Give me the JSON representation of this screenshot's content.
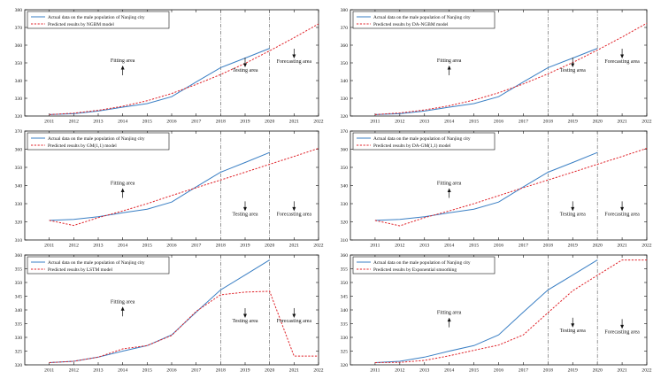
{
  "colors": {
    "actual": "#3a7fc4",
    "predicted": "#e0242b",
    "axis": "#111111",
    "vline": "#555555"
  },
  "chart_data": [
    {
      "type": "line",
      "years": [
        2011,
        2012,
        2013,
        2014,
        2015,
        2016,
        2017,
        2018,
        2019,
        2020,
        2021,
        2022
      ],
      "xlim": [
        2010,
        2022
      ],
      "ylim": [
        320,
        380
      ],
      "yticks": [
        320,
        330,
        340,
        350,
        360,
        370,
        380
      ],
      "vlines": [
        2018,
        2020
      ],
      "legend": [
        "Actual data on the male population of Nanjing city",
        "Predicted results by NGBM model"
      ],
      "series": [
        {
          "name": "Actual data on the male population of Nanjing city",
          "x": [
            2011,
            2012,
            2013,
            2014,
            2015,
            2016,
            2017,
            2018,
            2019,
            2020
          ],
          "values": [
            320.8,
            321.3,
            322.8,
            325.0,
            327.0,
            330.9,
            339.2,
            347.3,
            352.7,
            358.2
          ]
        },
        {
          "name": "Predicted results by NGBM model",
          "x": [
            2011,
            2012,
            2013,
            2014,
            2015,
            2016,
            2017,
            2018,
            2019,
            2020,
            2021,
            2022
          ],
          "values": [
            320.8,
            321.6,
            323.2,
            325.5,
            328.6,
            332.7,
            337.8,
            343.4,
            349.7,
            356.8,
            364.2,
            372.0
          ]
        }
      ],
      "annotations": [
        {
          "text": "Fitting area",
          "x": 2014.0,
          "y": 350.5,
          "arrow": "up"
        },
        {
          "text": "Testing area",
          "x": 2019.0,
          "y": 345.0,
          "arrow": "down"
        },
        {
          "text": "Forecasting area",
          "x": 2021.0,
          "y": 350.0,
          "arrow": "down"
        }
      ]
    },
    {
      "type": "line",
      "years": [
        2011,
        2012,
        2013,
        2014,
        2015,
        2016,
        2017,
        2018,
        2019,
        2020,
        2021,
        2022
      ],
      "xlim": [
        2010,
        2022
      ],
      "ylim": [
        320,
        380
      ],
      "yticks": [
        320,
        330,
        340,
        350,
        360,
        370,
        380
      ],
      "vlines": [
        2018,
        2020
      ],
      "legend": [
        "Actual data on the male population of Nanjing city",
        "Predicted results by DA-NGBM model"
      ],
      "series": [
        {
          "name": "Actual data on the male population of Nanjing city",
          "x": [
            2011,
            2012,
            2013,
            2014,
            2015,
            2016,
            2017,
            2018,
            2019,
            2020
          ],
          "values": [
            320.8,
            321.3,
            322.8,
            325.0,
            327.0,
            330.9,
            339.2,
            347.3,
            352.7,
            358.2
          ]
        },
        {
          "name": "Predicted results by DA-NGBM model",
          "x": [
            2011,
            2012,
            2013,
            2014,
            2015,
            2016,
            2017,
            2018,
            2019,
            2020,
            2021,
            2022
          ],
          "values": [
            320.8,
            321.7,
            323.4,
            325.8,
            329.0,
            333.1,
            338.1,
            343.8,
            350.2,
            357.2,
            364.6,
            372.4
          ]
        }
      ],
      "annotations": [
        {
          "text": "Fitting area",
          "x": 2014.0,
          "y": 350.5,
          "arrow": "up"
        },
        {
          "text": "Testing area",
          "x": 2019.0,
          "y": 345.0,
          "arrow": "down"
        },
        {
          "text": "Forecasting area",
          "x": 2021.0,
          "y": 350.0,
          "arrow": "down"
        }
      ]
    },
    {
      "type": "line",
      "years": [
        2011,
        2012,
        2013,
        2014,
        2015,
        2016,
        2017,
        2018,
        2019,
        2020,
        2021,
        2022
      ],
      "xlim": [
        2010,
        2022
      ],
      "ylim": [
        310,
        370
      ],
      "yticks": [
        310,
        320,
        330,
        340,
        350,
        360,
        370
      ],
      "vlines": [
        2018,
        2020
      ],
      "legend": [
        "Actual data on the male population of Nanjing city",
        "Predicted results by GM(1,1) model"
      ],
      "series": [
        {
          "name": "Actual data on the male population of Nanjing city",
          "x": [
            2011,
            2012,
            2013,
            2014,
            2015,
            2016,
            2017,
            2018,
            2019,
            2020
          ],
          "values": [
            320.8,
            321.3,
            322.8,
            325.0,
            327.0,
            330.9,
            339.2,
            347.3,
            352.7,
            358.2
          ]
        },
        {
          "name": "Predicted results by GM(1,1) model",
          "x": [
            2011,
            2012,
            2013,
            2014,
            2015,
            2016,
            2017,
            2018,
            2019,
            2020,
            2021,
            2022
          ],
          "values": [
            320.8,
            318.0,
            322.3,
            326.0,
            330.0,
            334.5,
            338.8,
            343.0,
            347.3,
            351.7,
            356.0,
            360.5
          ]
        }
      ],
      "annotations": [
        {
          "text": "Fitting area",
          "x": 2014.0,
          "y": 340.5,
          "arrow": "up"
        },
        {
          "text": "Testing area",
          "x": 2019.0,
          "y": 323.5,
          "arrow": "down"
        },
        {
          "text": "Forecasting area",
          "x": 2021.0,
          "y": 323.5,
          "arrow": "down"
        }
      ]
    },
    {
      "type": "line",
      "years": [
        2011,
        2012,
        2013,
        2014,
        2015,
        2016,
        2017,
        2018,
        2019,
        2020,
        2021,
        2022
      ],
      "xlim": [
        2010,
        2022
      ],
      "ylim": [
        310,
        370
      ],
      "yticks": [
        310,
        320,
        330,
        340,
        350,
        360,
        370
      ],
      "vlines": [
        2018,
        2020
      ],
      "legend": [
        "Actual data on the male population of Nanjing city",
        "Predicted results by DA-GM(1,1) model"
      ],
      "series": [
        {
          "name": "Actual data on the male population of Nanjing city",
          "x": [
            2011,
            2012,
            2013,
            2014,
            2015,
            2016,
            2017,
            2018,
            2019,
            2020
          ],
          "values": [
            320.8,
            321.3,
            322.8,
            325.0,
            327.0,
            330.9,
            339.2,
            347.3,
            352.7,
            358.2
          ]
        },
        {
          "name": "Predicted results by DA-GM(1,1) model",
          "x": [
            2011,
            2012,
            2013,
            2014,
            2015,
            2016,
            2017,
            2018,
            2019,
            2020,
            2021,
            2022
          ],
          "values": [
            320.8,
            317.8,
            322.3,
            326.0,
            330.0,
            334.4,
            338.8,
            343.0,
            347.3,
            351.7,
            356.0,
            360.5
          ]
        }
      ],
      "annotations": [
        {
          "text": "Fitting area",
          "x": 2014.0,
          "y": 340.5,
          "arrow": "up"
        },
        {
          "text": "Testing area",
          "x": 2019.0,
          "y": 323.5,
          "arrow": "down"
        },
        {
          "text": "Forecasting area",
          "x": 2021.0,
          "y": 323.5,
          "arrow": "down"
        }
      ]
    },
    {
      "type": "line",
      "years": [
        2011,
        2012,
        2013,
        2014,
        2015,
        2016,
        2017,
        2018,
        2019,
        2020,
        2021,
        2022
      ],
      "xlim": [
        2010,
        2022
      ],
      "ylim": [
        320,
        360
      ],
      "yticks": [
        320,
        325,
        330,
        335,
        340,
        345,
        350,
        355,
        360
      ],
      "vlines": [
        2018,
        2020
      ],
      "legend": [
        "Actual data on the male population of Nanjing city",
        "Predicted results by LSTM model"
      ],
      "series": [
        {
          "name": "Actual data on the male population of Nanjing city",
          "x": [
            2011,
            2012,
            2013,
            2014,
            2015,
            2016,
            2017,
            2018,
            2019,
            2020
          ],
          "values": [
            320.8,
            321.3,
            322.8,
            325.0,
            327.0,
            330.9,
            339.2,
            347.3,
            352.7,
            358.2
          ]
        },
        {
          "name": "Predicted results by LSTM model",
          "x": [
            2011,
            2012,
            2013,
            2014,
            2015,
            2016,
            2017,
            2018,
            2019,
            2020,
            2021,
            2022
          ],
          "values": [
            320.8,
            321.3,
            322.8,
            325.8,
            327.0,
            330.7,
            339.5,
            345.5,
            346.5,
            346.8,
            323.2,
            323.2
          ]
        }
      ],
      "annotations": [
        {
          "text": "Fitting area",
          "x": 2014.0,
          "y": 342.5,
          "arrow": "up"
        },
        {
          "text": "Testing area",
          "x": 2019.0,
          "y": 335.5,
          "arrow": "down"
        },
        {
          "text": "Forecasting area",
          "x": 2021.0,
          "y": 335.5,
          "arrow": "down"
        }
      ]
    },
    {
      "type": "line",
      "years": [
        2011,
        2012,
        2013,
        2014,
        2015,
        2016,
        2017,
        2018,
        2019,
        2020,
        2021,
        2022
      ],
      "xlim": [
        2010,
        2022
      ],
      "ylim": [
        320,
        360
      ],
      "yticks": [
        320,
        325,
        330,
        335,
        340,
        345,
        350,
        355,
        360
      ],
      "vlines": [
        2018,
        2020
      ],
      "legend": [
        "Actual data on the male population of Nanjing city",
        "Predicted results by Exponential smoothing"
      ],
      "series": [
        {
          "name": "Actual data on the male population of Nanjing city",
          "x": [
            2011,
            2012,
            2013,
            2014,
            2015,
            2016,
            2017,
            2018,
            2019,
            2020
          ],
          "values": [
            320.8,
            321.3,
            322.8,
            325.0,
            327.0,
            330.9,
            339.2,
            347.3,
            352.7,
            358.2
          ]
        },
        {
          "name": "Predicted results by Exponential smoothing",
          "x": [
            2011,
            2012,
            2013,
            2014,
            2015,
            2016,
            2017,
            2018,
            2019,
            2020,
            2021,
            2022
          ],
          "values": [
            320.8,
            320.9,
            321.6,
            323.3,
            325.3,
            327.2,
            330.9,
            339.0,
            347.0,
            352.6,
            358.2,
            358.2
          ]
        }
      ],
      "annotations": [
        {
          "text": "Fitting area",
          "x": 2014.0,
          "y": 338.5,
          "arrow": "up"
        },
        {
          "text": "Testing area",
          "x": 2019.0,
          "y": 332.0,
          "arrow": "down"
        },
        {
          "text": "Forecasting area",
          "x": 2021.0,
          "y": 331.5,
          "arrow": "down"
        }
      ]
    }
  ]
}
